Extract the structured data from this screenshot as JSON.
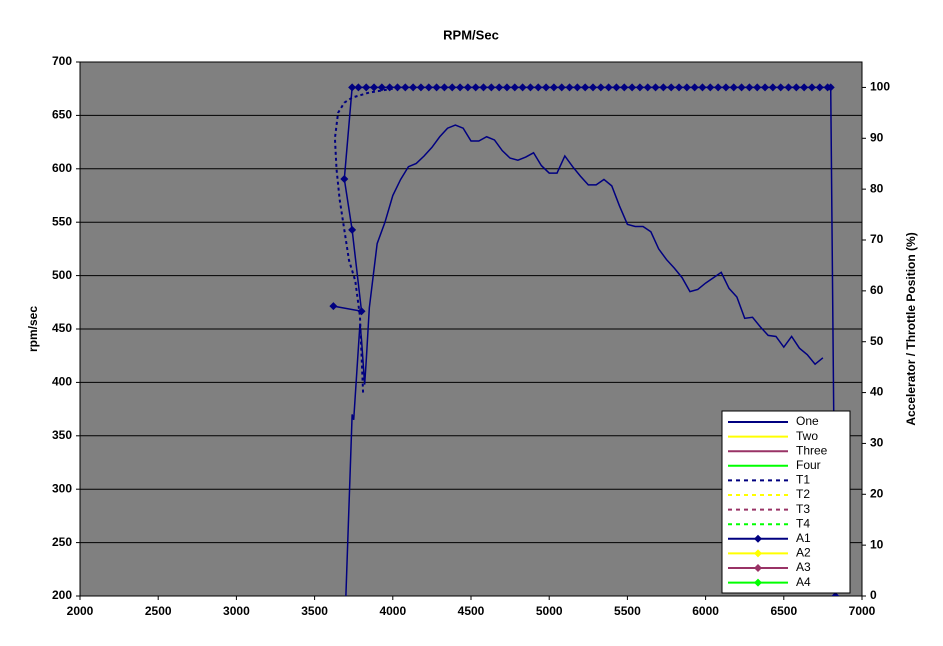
{
  "chart_data": {
    "type": "line",
    "title": "RPM/Sec",
    "ylabel": "rpm/sec",
    "y2label": "Accelerator / Throttle Position (%)",
    "xlim": [
      2000,
      7000
    ],
    "xticks": [
      2000,
      2500,
      3000,
      3500,
      4000,
      4500,
      5000,
      5500,
      6000,
      6500,
      7000
    ],
    "ylim": [
      200,
      700
    ],
    "yticks": [
      200,
      250,
      300,
      350,
      400,
      450,
      500,
      550,
      600,
      650,
      700
    ],
    "y2lim": [
      0,
      105
    ],
    "y2ticks": [
      0,
      10,
      20,
      30,
      40,
      50,
      60,
      70,
      80,
      90,
      100
    ],
    "grid": true,
    "background": "#808080",
    "legend": "bottom-right",
    "series": [
      {
        "name": "One",
        "color": "#000080",
        "dash": false,
        "marker": false,
        "x": [
          3700,
          3740,
          3750,
          3770,
          3790,
          3800,
          3820,
          3830,
          3850,
          3900,
          3950,
          4000,
          4050,
          4100,
          4150,
          4200,
          4250,
          4300,
          4350,
          4400,
          4450,
          4500,
          4550,
          4600,
          4650,
          4700,
          4750,
          4800,
          4850,
          4900,
          4950,
          5000,
          5050,
          5100,
          5150,
          5200,
          5250,
          5300,
          5350,
          5400,
          5450,
          5500,
          5550,
          5600,
          5650,
          5700,
          5750,
          5800,
          5850,
          5900,
          5950,
          6000,
          6050,
          6100,
          6150,
          6200,
          6250,
          6300,
          6350,
          6400,
          6450,
          6500,
          6550,
          6600,
          6650,
          6700,
          6750
        ],
        "values": [
          200,
          370,
          365,
          410,
          455,
          440,
          398,
          420,
          470,
          530,
          550,
          575,
          590,
          602,
          605,
          612,
          620,
          630,
          638,
          641,
          638,
          626,
          626,
          630,
          627,
          617,
          610,
          608,
          611,
          615,
          603,
          596,
          596,
          612,
          602,
          593,
          585,
          585,
          590,
          584,
          565,
          548,
          546,
          546,
          541,
          525,
          515,
          507,
          498,
          485,
          487,
          493,
          498,
          503,
          488,
          480,
          460,
          461,
          452,
          444,
          443,
          433,
          443,
          432,
          426,
          417,
          423
        ]
      },
      {
        "name": "Two",
        "color": "#ffff00",
        "dash": false,
        "marker": false,
        "x": [],
        "values": []
      },
      {
        "name": "Three",
        "color": "#993366",
        "dash": false,
        "marker": false,
        "x": [],
        "values": []
      },
      {
        "name": "Four",
        "color": "#00ff00",
        "dash": false,
        "marker": false,
        "x": [],
        "values": []
      },
      {
        "name": "T1",
        "color": "#000080",
        "dash": true,
        "marker": false,
        "axis": "y2",
        "x": [
          3810,
          3790,
          3760,
          3720,
          3690,
          3660,
          3640,
          3630,
          3650,
          3690,
          3740,
          3850,
          3950,
          4050
        ],
        "values": [
          40,
          55,
          62,
          66,
          72,
          78,
          84,
          90,
          95,
          97,
          98,
          99,
          99.5,
          100
        ]
      },
      {
        "name": "T2",
        "color": "#ffff00",
        "dash": true,
        "marker": false,
        "x": [],
        "values": []
      },
      {
        "name": "T3",
        "color": "#993366",
        "dash": true,
        "marker": false,
        "x": [],
        "values": []
      },
      {
        "name": "T4",
        "color": "#00ff00",
        "dash": true,
        "marker": false,
        "x": [],
        "values": []
      },
      {
        "name": "A1",
        "color": "#000080",
        "dash": false,
        "marker": true,
        "axis": "y2",
        "x": [
          3620,
          3800,
          3740,
          3690,
          3740,
          3780,
          3830,
          3880,
          3930,
          3980,
          4030,
          4080,
          4130,
          4180,
          4230,
          4280,
          4330,
          4380,
          4430,
          4480,
          4530,
          4580,
          4630,
          4680,
          4730,
          4780,
          4830,
          4880,
          4930,
          4980,
          5030,
          5080,
          5130,
          5180,
          5230,
          5280,
          5330,
          5380,
          5430,
          5480,
          5530,
          5580,
          5630,
          5680,
          5730,
          5780,
          5830,
          5880,
          5930,
          5980,
          6030,
          6080,
          6130,
          6180,
          6230,
          6280,
          6330,
          6380,
          6430,
          6480,
          6530,
          6580,
          6630,
          6680,
          6730,
          6780,
          6800,
          6830
        ],
        "values": [
          57,
          56,
          72,
          82,
          100,
          100,
          100,
          100,
          100,
          100,
          100,
          100,
          100,
          100,
          100,
          100,
          100,
          100,
          100,
          100,
          100,
          100,
          100,
          100,
          100,
          100,
          100,
          100,
          100,
          100,
          100,
          100,
          100,
          100,
          100,
          100,
          100,
          100,
          100,
          100,
          100,
          100,
          100,
          100,
          100,
          100,
          100,
          100,
          100,
          100,
          100,
          100,
          100,
          100,
          100,
          100,
          100,
          100,
          100,
          100,
          100,
          100,
          100,
          100,
          100,
          100,
          100,
          0
        ]
      },
      {
        "name": "A2",
        "color": "#ffff00",
        "dash": false,
        "marker": true,
        "x": [],
        "values": []
      },
      {
        "name": "A3",
        "color": "#993366",
        "dash": false,
        "marker": true,
        "x": [],
        "values": []
      },
      {
        "name": "A4",
        "color": "#00ff00",
        "dash": false,
        "marker": true,
        "x": [],
        "values": []
      }
    ]
  }
}
